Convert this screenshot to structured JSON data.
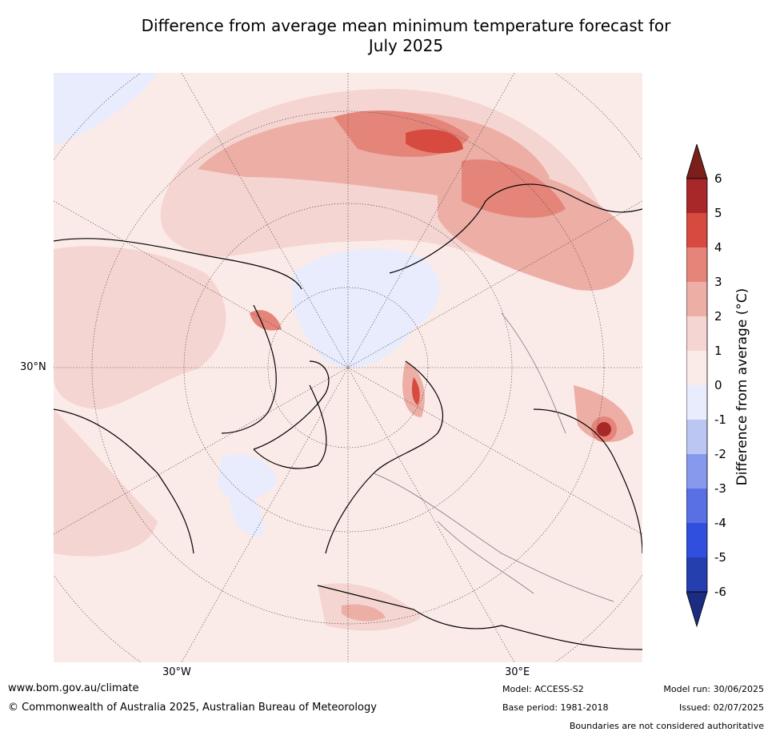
{
  "title_line1": "Difference from average mean minimum temperature forecast for",
  "title_line2": "July 2025",
  "axis_labels": {
    "lat_30n": "30°N",
    "lon_30w": "30°W",
    "lon_30e": "30°E"
  },
  "colorbar": {
    "label": "Difference from average (°C)",
    "ticks": [
      "6",
      "5",
      "4",
      "3",
      "2",
      "1",
      "0",
      "-1",
      "-2",
      "-3",
      "-4",
      "-5",
      "-6"
    ],
    "colors": [
      "#7a1f1a",
      "#a8282a",
      "#d74a3f",
      "#e5857a",
      "#edaea6",
      "#f5d5d1",
      "#fbebe8",
      "#e8ecfc",
      "#bcc6f2",
      "#8799ed",
      "#5870e3",
      "#304fdf",
      "#263fae",
      "#1c2c80"
    ]
  },
  "footer": {
    "website": "www.bom.gov.au/climate",
    "copyright": "© Commonwealth of Australia 2025, Australian Bureau of Meteorology",
    "model": "Model: ACCESS-S2",
    "base_period": "Base period: 1981-2018",
    "model_run": "Model run: 30/06/2025",
    "issued": "Issued: 02/07/2025",
    "disclaimer": "Boundaries are not considered authoritative"
  }
}
